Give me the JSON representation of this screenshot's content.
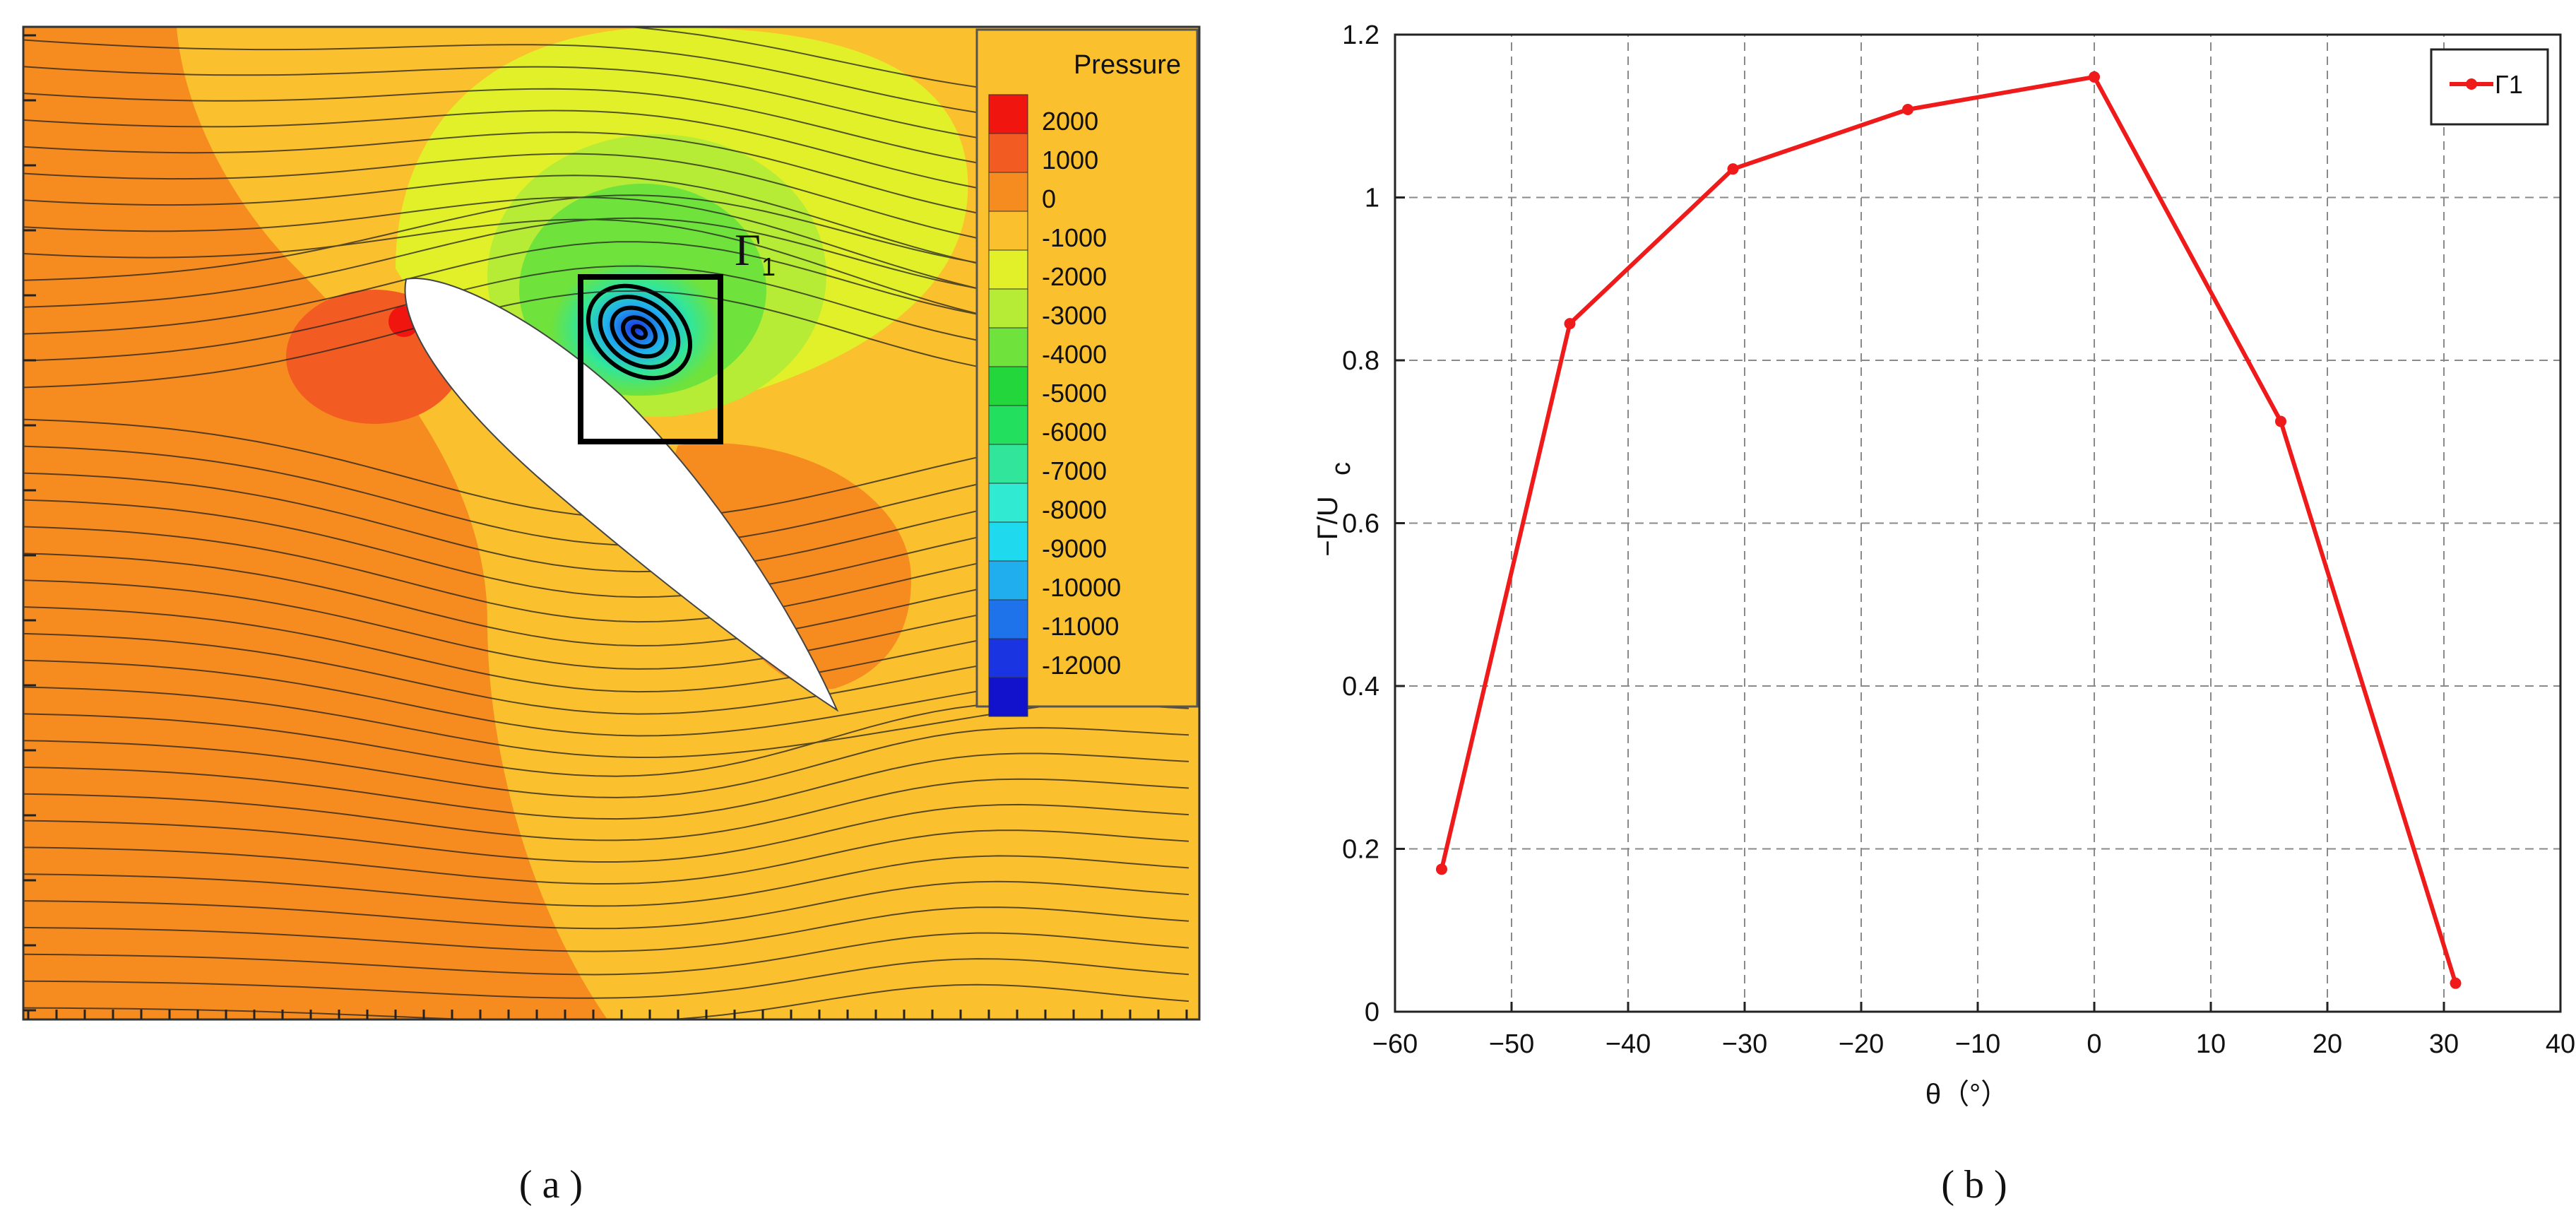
{
  "colors": {
    "series_red": "#ef1a1a",
    "grid": "#8a8a8a",
    "field_orange": "#f68c1f",
    "field_yellow": "#fbc02d"
  },
  "panel_a": {
    "label": "( a )",
    "legend_title": "Pressure",
    "vortex_label": "Γ",
    "vortex_subscript": "1",
    "legend": [
      {
        "value": "2000",
        "color": "#f0160f"
      },
      {
        "value": "1000",
        "color": "#f25c22"
      },
      {
        "value": "0",
        "color": "#f68c1f"
      },
      {
        "value": "-1000",
        "color": "#fbc02d"
      },
      {
        "value": "-2000",
        "color": "#e2f02a"
      },
      {
        "value": "-3000",
        "color": "#b6ec35"
      },
      {
        "value": "-4000",
        "color": "#6fe23b"
      },
      {
        "value": "-5000",
        "color": "#23d63c"
      },
      {
        "value": "-6000",
        "color": "#22e05e"
      },
      {
        "value": "-7000",
        "color": "#31e69a"
      },
      {
        "value": "-8000",
        "color": "#30ead2"
      },
      {
        "value": "-9000",
        "color": "#1fd9ef"
      },
      {
        "value": "-10000",
        "color": "#20aeee"
      },
      {
        "value": "-11000",
        "color": "#1f73ea"
      },
      {
        "value": "-12000",
        "color": "#1a34e2"
      },
      {
        "value": "",
        "color": "#1212cc"
      }
    ]
  },
  "panel_b": {
    "label": "( b )"
  },
  "chart_data": {
    "type": "line",
    "title": "",
    "xlabel": "θ（°）",
    "ylabel": "−Γ/U",
    "ylabel_sub": "c",
    "xlim": [
      -60,
      40
    ],
    "ylim": [
      0,
      1.2
    ],
    "xticks": [
      -60,
      -50,
      -40,
      -30,
      -20,
      -10,
      0,
      10,
      20,
      30,
      40
    ],
    "xtick_labels": [
      "−60",
      "−50",
      "−40",
      "−30",
      "−20",
      "−10",
      "0",
      "10",
      "20",
      "30",
      "40"
    ],
    "yticks": [
      0,
      0.2,
      0.4,
      0.6,
      0.8,
      1,
      1.2
    ],
    "ytick_labels": [
      "0",
      "0.2",
      "0.4",
      "0.6",
      "0.8",
      "1",
      "1.2"
    ],
    "grid": true,
    "legend_position": "top-right",
    "series": [
      {
        "name": "Γ1",
        "color": "#ef1a1a",
        "x": [
          -56,
          -45,
          -31,
          -16,
          0,
          16,
          31
        ],
        "y": [
          0.175,
          0.845,
          1.035,
          1.108,
          1.148,
          0.725,
          0.035
        ]
      }
    ]
  }
}
